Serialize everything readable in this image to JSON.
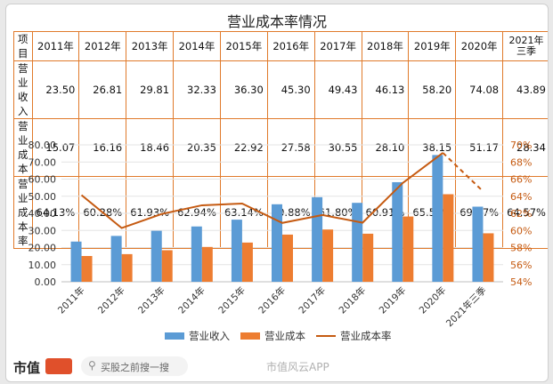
{
  "title": "营业成本率情况",
  "table": {
    "header": [
      "项目",
      "2011年",
      "2012年",
      "2013年",
      "2014年",
      "2015年",
      "2016年",
      "2017年",
      "2018年",
      "2019年",
      "2020年",
      "2021年\n三季"
    ],
    "rows": [
      {
        "label": "营业收入",
        "values": [
          "23.50",
          "26.81",
          "29.81",
          "32.33",
          "36.30",
          "45.30",
          "49.43",
          "46.13",
          "58.20",
          "74.08",
          "43.89"
        ]
      },
      {
        "label": "营业成本",
        "values": [
          "15.07",
          "16.16",
          "18.46",
          "20.35",
          "22.92",
          "27.58",
          "30.55",
          "28.10",
          "38.15",
          "51.17",
          "28.34"
        ]
      },
      {
        "label": "营业成本率",
        "values": [
          "64.13%",
          "60.28%",
          "61.93%",
          "62.94%",
          "63.14%",
          "60.88%",
          "61.80%",
          "60.91%",
          "65.55%",
          "69.07%",
          "64.57%"
        ]
      }
    ]
  },
  "chart_data": {
    "type": "bar",
    "categories": [
      "2011年",
      "2012年",
      "2013年",
      "2014年",
      "2015年",
      "2016年",
      "2017年",
      "2018年",
      "2019年",
      "2020年",
      "2021年三季"
    ],
    "series": [
      {
        "name": "营业收入",
        "type": "bar",
        "axis": "left",
        "color": "#5b9bd5",
        "values": [
          23.5,
          26.81,
          29.81,
          32.33,
          36.3,
          45.3,
          49.43,
          46.13,
          58.2,
          74.08,
          43.89
        ]
      },
      {
        "name": "营业成本",
        "type": "bar",
        "axis": "left",
        "color": "#ed7d31",
        "values": [
          15.07,
          16.16,
          18.46,
          20.35,
          22.92,
          27.58,
          30.55,
          28.1,
          38.15,
          51.17,
          28.34
        ]
      },
      {
        "name": "营业成本率",
        "type": "line",
        "axis": "right",
        "color": "#c55a11",
        "last_segment_dashed": true,
        "values": [
          64.13,
          60.28,
          61.93,
          62.94,
          63.14,
          60.88,
          61.8,
          60.91,
          65.55,
          69.07,
          64.57
        ]
      }
    ],
    "left_axis": {
      "ylim": [
        0,
        80
      ],
      "ticks": [
        "0.00",
        "10.00",
        "20.00",
        "30.00",
        "40.00",
        "50.00",
        "60.00",
        "70.00",
        "80.00"
      ]
    },
    "right_axis": {
      "ylim": [
        54,
        70
      ],
      "ticks": [
        "54%",
        "56%",
        "58%",
        "60%",
        "62%",
        "64%",
        "66%",
        "68%",
        "70%"
      ],
      "color": "#c55a11"
    },
    "legend": {
      "placement": "bottom",
      "items": [
        "营业收入",
        "营业成本",
        "营业成本率"
      ]
    },
    "grid": true
  },
  "footer": {
    "brand": "市值",
    "search_placeholder": "买股之前搜一搜",
    "watermark": "市值风云APP"
  },
  "colors": {
    "table_border": "#e07a2b",
    "revenue": "#5b9bd5",
    "cost": "#ed7d31",
    "ratio": "#c55a11"
  }
}
